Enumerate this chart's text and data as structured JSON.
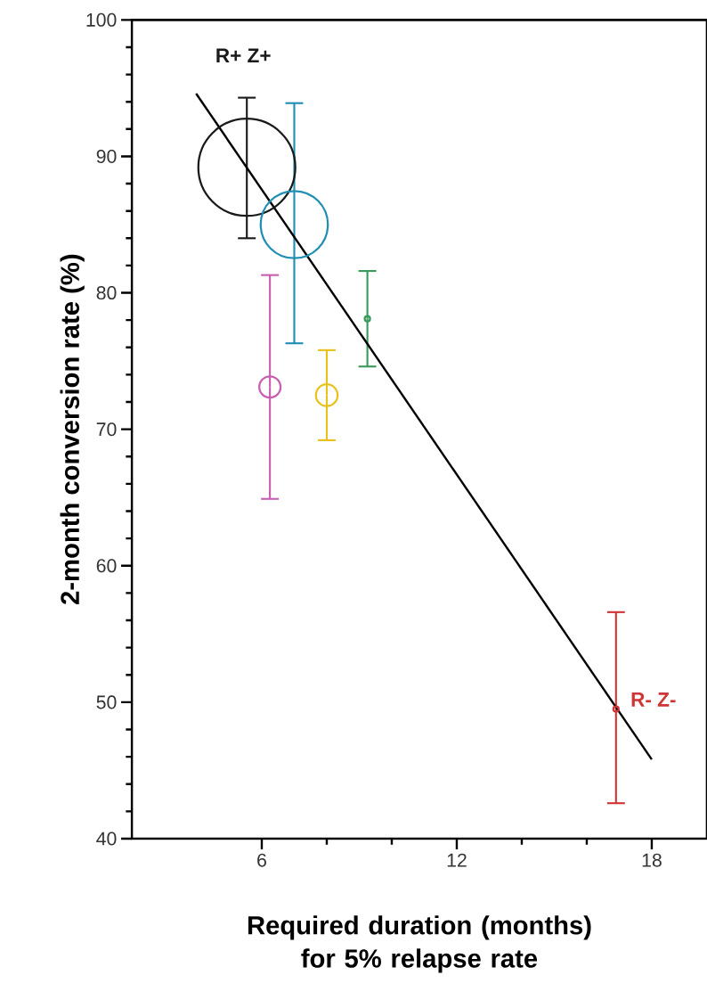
{
  "chart_data": {
    "type": "bubble",
    "xlabel": "Required duration (months) for 5% relapse rate",
    "ylabel": "2-month conversion rate (%)",
    "xlim": [
      2,
      19.7
    ],
    "ylim": [
      40,
      100
    ],
    "xticks": [
      6,
      12,
      18
    ],
    "yticks": [
      40,
      50,
      60,
      70,
      80,
      90,
      100
    ],
    "grid": false,
    "series": [
      {
        "x": [
          5.54,
          7.0,
          6.25,
          8.0,
          9.25,
          16.9
        ],
        "values": [
          89.2,
          85.0,
          73.1,
          72.5,
          78.1,
          49.5
        ],
        "sizes": [
          1,
          0.48,
          0.048,
          0.05,
          0.003,
          0.003
        ],
        "colors": [
          "#1a1a1a",
          "#1f8fb5",
          "#c85fb0",
          "#e8c21c",
          "#3a9a5c",
          "#d03535"
        ],
        "errors": [
          [
            84.0,
            94.3
          ],
          [
            76.3,
            93.9
          ],
          [
            64.9,
            81.3
          ],
          [
            69.2,
            75.8
          ],
          [
            74.6,
            81.6
          ],
          [
            42.6,
            56.6
          ]
        ]
      },
      {
        "type": "line",
        "color": "#000000",
        "x": [
          3.98,
          18.0
        ],
        "values": [
          94.6,
          45.8
        ]
      }
    ],
    "annotations": [
      "R+ Z+",
      "R- Z-"
    ]
  }
}
